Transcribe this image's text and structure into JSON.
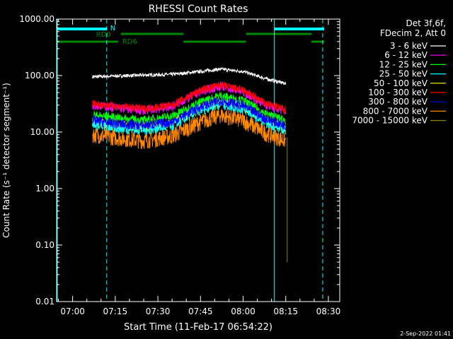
{
  "chart_data": {
    "type": "line",
    "title": "RHESSI Count Rates",
    "xlabel": "Start Time (11-Feb-17 06:54:22)",
    "ylabel": "Count Rate (s⁻¹ detector segment⁻¹)",
    "y_scale": "log",
    "ylim": [
      0.01,
      1000
    ],
    "xlim": [
      "06:54:22",
      "08:34:00"
    ],
    "x_ticks": [
      "07:00",
      "07:15",
      "07:30",
      "07:45",
      "08:00",
      "08:15",
      "08:30"
    ],
    "y_ticks": [
      "1000.00",
      "100.00",
      "10.00",
      "1.00",
      "0.10",
      "0.01"
    ],
    "legend_header": [
      "Det 3f,6f,",
      "FDecim 2, Att 0"
    ],
    "legend_position": "right",
    "grid": false,
    "series": [
      {
        "name": "3 - 6 keV",
        "color": "#ffffff",
        "x": [
          "07:07",
          "07:20",
          "07:35",
          "07:45",
          "07:52",
          "08:00",
          "08:08",
          "08:15"
        ],
        "values": [
          95,
          100,
          105,
          118,
          130,
          118,
          88,
          72
        ]
      },
      {
        "name": "6 - 12 keV",
        "color": "#ff00ff",
        "x": [
          "07:07",
          "07:15",
          "07:25",
          "07:35",
          "07:45",
          "07:52",
          "08:00",
          "08:08",
          "08:15"
        ],
        "values": [
          30,
          27,
          24,
          28,
          52,
          65,
          52,
          30,
          23
        ]
      },
      {
        "name": "12 - 25 keV",
        "color": "#00ff00",
        "x": [
          "07:07",
          "07:15",
          "07:25",
          "07:35",
          "07:45",
          "07:52",
          "08:00",
          "08:08",
          "08:15"
        ],
        "values": [
          20,
          18,
          16,
          19,
          34,
          44,
          36,
          21,
          16
        ]
      },
      {
        "name": "25 - 50 keV",
        "color": "#00ffff",
        "x": [
          "07:07",
          "07:15",
          "07:25",
          "07:35",
          "07:45",
          "07:52",
          "08:00",
          "08:08",
          "08:15"
        ],
        "values": [
          14,
          12,
          11,
          13,
          25,
          32,
          26,
          15,
          11
        ]
      },
      {
        "name": "50 - 100 keV",
        "color": "#ffff00",
        "x": [
          "07:07",
          "07:15",
          "07:25",
          "07:35",
          "07:45",
          "07:52",
          "08:00",
          "08:08",
          "08:15"
        ],
        "values": [
          15,
          13,
          12,
          14,
          27,
          34,
          28,
          16,
          12
        ]
      },
      {
        "name": "100 - 300 keV",
        "color": "#ff0000",
        "x": [
          "07:07",
          "07:15",
          "07:25",
          "07:35",
          "07:45",
          "07:52",
          "08:00",
          "08:08",
          "08:15"
        ],
        "values": [
          32,
          29,
          26,
          30,
          55,
          68,
          55,
          32,
          25
        ]
      },
      {
        "name": "300 - 800 keV",
        "color": "#0000ff",
        "x": [
          "07:07",
          "07:15",
          "07:25",
          "07:35",
          "07:45",
          "07:52",
          "08:00",
          "08:08",
          "08:15"
        ],
        "values": [
          16,
          14,
          13,
          15,
          28,
          36,
          29,
          17,
          13
        ]
      },
      {
        "name": "800 - 7000 keV",
        "color": "#ff8800",
        "x": [
          "07:07",
          "07:15",
          "07:25",
          "07:35",
          "07:45",
          "07:52",
          "08:00",
          "08:08",
          "08:15"
        ],
        "values": [
          9,
          8,
          7,
          8.5,
          15,
          20,
          16,
          9.5,
          7
        ]
      },
      {
        "name": "7000 - 15000 keV",
        "color": "#888800",
        "x": [],
        "values": []
      }
    ],
    "annotations": [
      {
        "text": "N",
        "color": "#00ffff"
      },
      {
        "text": "RD0",
        "color": "#008800"
      },
      {
        "text": "RD6",
        "color": "#008800"
      }
    ],
    "timestamp": "2-Sep-2022 01:41"
  }
}
